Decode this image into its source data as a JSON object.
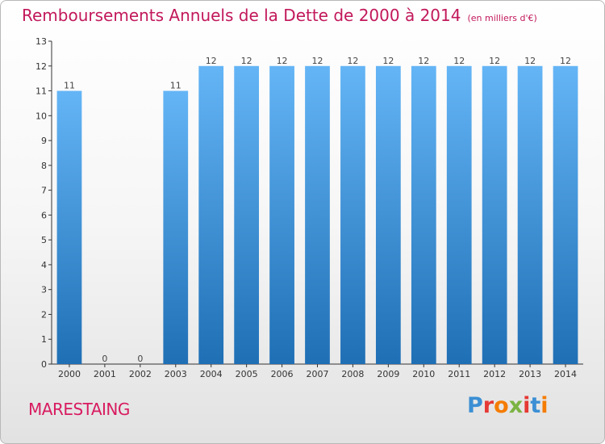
{
  "title": "Remboursements Annuels de la Dette de 2000 à 2014",
  "subtitle": "(en milliers d'€)",
  "commune": "MARESTAING",
  "brand": {
    "text": "Proxiti",
    "colors": [
      "#3b8fd4",
      "#e53935",
      "#f57c00",
      "#7cb342",
      "#e53935",
      "#3b8fd4",
      "#f57c00"
    ]
  },
  "colors": {
    "title": "#c2185b",
    "bar_top": "#64b5f6",
    "bar_bottom": "#1f6fb5",
    "axis": "#333333",
    "grid": "#dddddd"
  },
  "chart_data": {
    "type": "bar",
    "title": "Remboursements Annuels de la Dette de 2000 à 2014",
    "subtitle": "(en milliers d'€)",
    "categories": [
      "2000",
      "2001",
      "2002",
      "2003",
      "2004",
      "2005",
      "2006",
      "2007",
      "2008",
      "2009",
      "2010",
      "2011",
      "2012",
      "2013",
      "2014"
    ],
    "values": [
      11,
      0,
      0,
      11,
      12,
      12,
      12,
      12,
      12,
      12,
      12,
      12,
      12,
      12,
      12
    ],
    "data_labels": [
      "11",
      "0",
      "0",
      "11",
      "12",
      "12",
      "12",
      "12",
      "12",
      "12",
      "12",
      "12",
      "12",
      "12",
      "12"
    ],
    "yticks": [
      0,
      1,
      2,
      3,
      4,
      5,
      6,
      7,
      8,
      9,
      10,
      11,
      12,
      13
    ],
    "ylim": [
      0,
      13
    ],
    "xlabel": "",
    "ylabel": "",
    "grid": false,
    "legend": "none"
  }
}
